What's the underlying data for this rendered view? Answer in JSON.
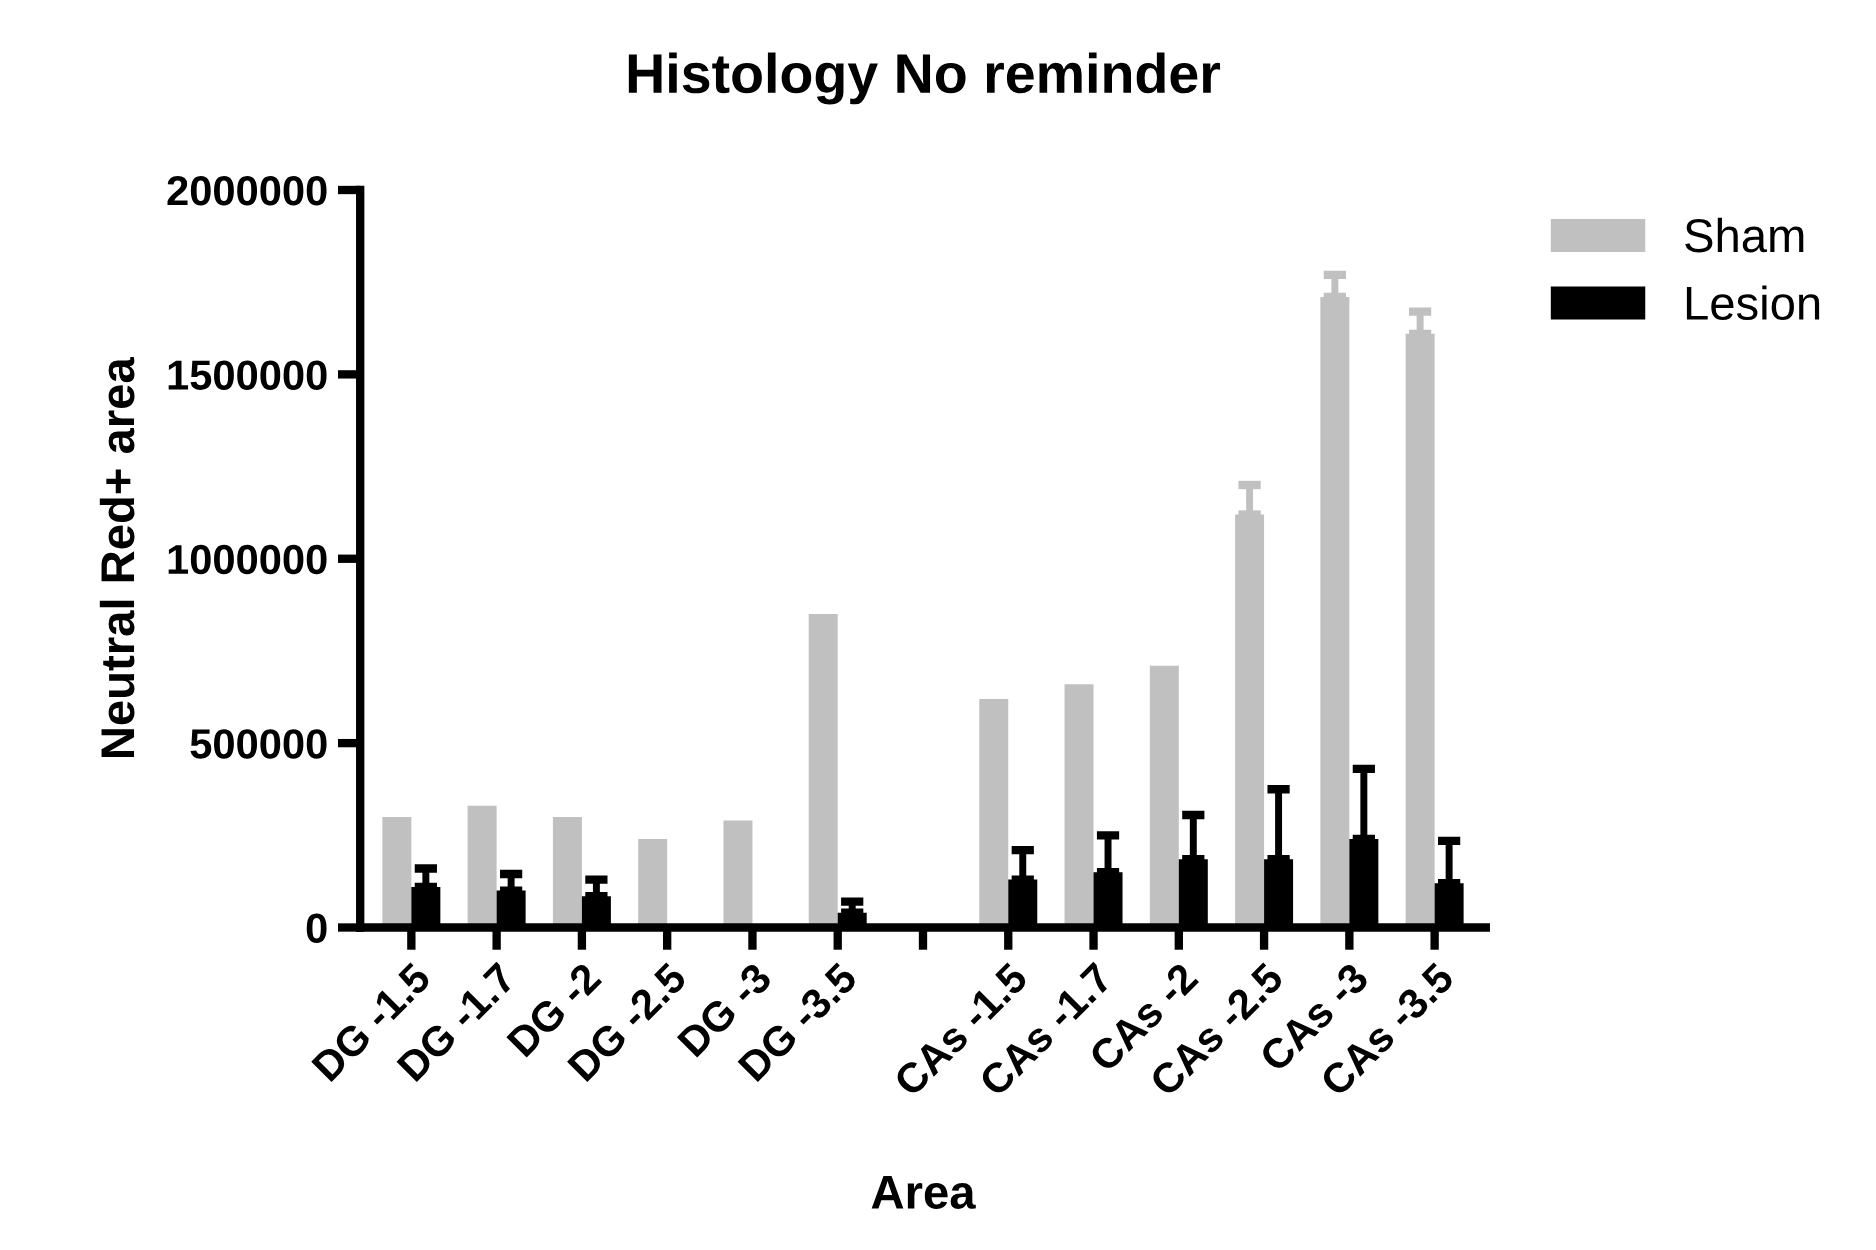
{
  "chart_data": {
    "type": "bar",
    "title": "Histology No reminder",
    "xlabel": "Area",
    "ylabel": "Neutral Red+ area",
    "categories": [
      "DG -1.5",
      "DG -1.7",
      "DG -2",
      "DG -2.5",
      "DG -3",
      "DG -3.5",
      null,
      "CAs -1.5",
      "CAs -1.7",
      "CAs -2",
      "CAs -2.5",
      "CAs -3",
      "CAs -3.5"
    ],
    "series": [
      {
        "name": "Sham",
        "color": "#c0c0c0",
        "values": [
          300000,
          330000,
          300000,
          240000,
          290000,
          850000,
          null,
          620000,
          660000,
          710000,
          1120000,
          1710000,
          1610000
        ],
        "errors": [
          null,
          null,
          null,
          null,
          null,
          null,
          null,
          null,
          null,
          null,
          80000,
          60000,
          60000
        ]
      },
      {
        "name": "Lesion",
        "color": "#000000",
        "values": [
          110000,
          100000,
          85000,
          5000,
          0,
          40000,
          null,
          130000,
          150000,
          185000,
          185000,
          240000,
          120000
        ],
        "errors": [
          50000,
          45000,
          45000,
          null,
          null,
          30000,
          null,
          80000,
          100000,
          120000,
          190000,
          190000,
          115000
        ]
      }
    ],
    "ylim": [
      0,
      2000000
    ],
    "yticks": [
      0,
      500000,
      1000000,
      1500000,
      2000000
    ],
    "grid": false,
    "legend": "top right"
  }
}
